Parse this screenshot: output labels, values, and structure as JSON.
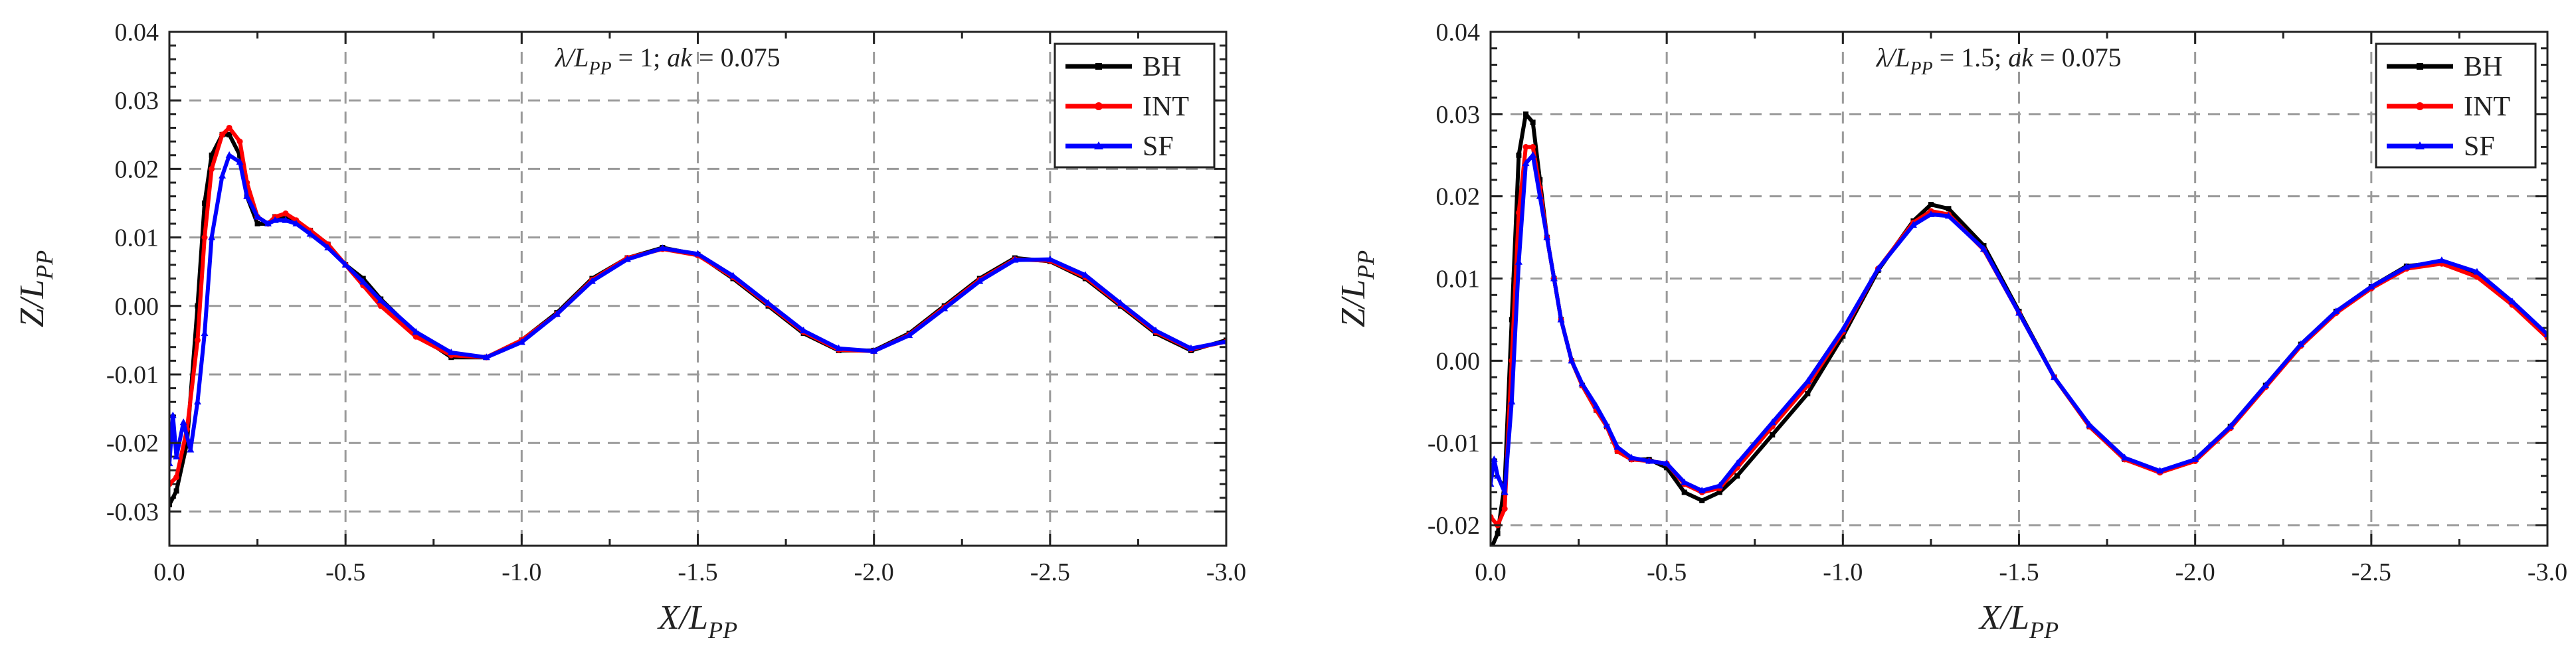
{
  "chart_data": [
    {
      "type": "line",
      "title": "",
      "annotation": {
        "prefix": "λ/L",
        "prefix_sub": "PP",
        "mid": " = 1; ",
        "ak": "ak",
        "suffix": " = 0.075"
      },
      "xlabel": {
        "main": "X/L",
        "sub": "PP"
      },
      "ylabel": {
        "main": "Z/L",
        "sub": "PP"
      },
      "xlim": [
        0.0,
        -3.0
      ],
      "ylim": [
        -0.035,
        0.04
      ],
      "xticks": [
        0.0,
        -0.5,
        -1.0,
        -1.5,
        -2.0,
        -2.5,
        -3.0
      ],
      "xtick_labels": [
        "0.0",
        "-0.5",
        "-1.0",
        "-1.5",
        "-2.0",
        "-2.5",
        "-3.0"
      ],
      "yticks": [
        -0.03,
        -0.02,
        -0.01,
        0.0,
        0.01,
        0.02,
        0.03,
        0.04
      ],
      "ytick_labels": [
        "-0.03",
        "-0.02",
        "-0.01",
        "0.00",
        "0.01",
        "0.02",
        "0.03",
        "0.04"
      ],
      "grid": true,
      "legend_position": "top-right",
      "series": [
        {
          "name": "BH",
          "color": "#000000",
          "marker": "square",
          "x": [
            0.0,
            -0.02,
            -0.05,
            -0.08,
            -0.1,
            -0.12,
            -0.15,
            -0.17,
            -0.2,
            -0.22,
            -0.25,
            -0.28,
            -0.3,
            -0.33,
            -0.36,
            -0.4,
            -0.45,
            -0.5,
            -0.55,
            -0.6,
            -0.7,
            -0.8,
            -0.9,
            -1.0,
            -1.1,
            -1.2,
            -1.3,
            -1.4,
            -1.5,
            -1.6,
            -1.7,
            -1.8,
            -1.9,
            -2.0,
            -2.1,
            -2.2,
            -2.3,
            -2.4,
            -2.5,
            -2.6,
            -2.7,
            -2.8,
            -2.9,
            -3.0
          ],
          "y": [
            -0.029,
            -0.027,
            -0.02,
            0.0,
            0.015,
            0.022,
            0.025,
            0.025,
            0.022,
            0.016,
            0.012,
            0.012,
            0.013,
            0.013,
            0.012,
            0.011,
            0.009,
            0.006,
            0.004,
            0.001,
            -0.004,
            -0.0075,
            -0.0075,
            -0.005,
            -0.001,
            0.004,
            0.007,
            0.0085,
            0.0075,
            0.004,
            0.0,
            -0.004,
            -0.0065,
            -0.0065,
            -0.004,
            0.0,
            0.004,
            0.007,
            0.0065,
            0.004,
            0.0,
            -0.004,
            -0.0065,
            -0.005
          ]
        },
        {
          "name": "INT",
          "color": "#ff0000",
          "marker": "circle",
          "x": [
            0.0,
            -0.02,
            -0.05,
            -0.08,
            -0.1,
            -0.12,
            -0.15,
            -0.17,
            -0.2,
            -0.22,
            -0.25,
            -0.28,
            -0.3,
            -0.33,
            -0.36,
            -0.4,
            -0.45,
            -0.5,
            -0.55,
            -0.6,
            -0.7,
            -0.8,
            -0.9,
            -1.0,
            -1.1,
            -1.2,
            -1.3,
            -1.4,
            -1.5,
            -1.6,
            -1.7,
            -1.8,
            -1.9,
            -2.0,
            -2.1,
            -2.2,
            -2.3,
            -2.4,
            -2.5,
            -2.6,
            -2.7,
            -2.8,
            -2.9,
            -3.0
          ],
          "y": [
            -0.026,
            -0.025,
            -0.018,
            -0.005,
            0.01,
            0.02,
            0.025,
            0.026,
            0.024,
            0.018,
            0.013,
            0.012,
            0.013,
            0.0135,
            0.0125,
            0.011,
            0.009,
            0.006,
            0.003,
            0.0,
            -0.0045,
            -0.0072,
            -0.0075,
            -0.005,
            -0.0012,
            0.0038,
            0.007,
            0.0083,
            0.0074,
            0.0042,
            0.0002,
            -0.0038,
            -0.0064,
            -0.0066,
            -0.0042,
            -0.0002,
            0.0038,
            0.0068,
            0.0066,
            0.0042,
            0.0002,
            -0.0038,
            -0.0063,
            -0.0052
          ]
        },
        {
          "name": "SF",
          "color": "#0000ff",
          "marker": "triangle",
          "x": [
            0.0,
            -0.01,
            -0.02,
            -0.04,
            -0.06,
            -0.08,
            -0.1,
            -0.12,
            -0.15,
            -0.17,
            -0.2,
            -0.22,
            -0.25,
            -0.28,
            -0.3,
            -0.33,
            -0.36,
            -0.4,
            -0.45,
            -0.5,
            -0.55,
            -0.6,
            -0.7,
            -0.8,
            -0.9,
            -1.0,
            -1.1,
            -1.2,
            -1.3,
            -1.4,
            -1.5,
            -1.6,
            -1.7,
            -1.8,
            -1.9,
            -2.0,
            -2.1,
            -2.2,
            -2.3,
            -2.4,
            -2.5,
            -2.6,
            -2.7,
            -2.8,
            -2.9,
            -3.0
          ],
          "y": [
            -0.023,
            -0.016,
            -0.022,
            -0.017,
            -0.021,
            -0.014,
            -0.004,
            0.01,
            0.019,
            0.022,
            0.021,
            0.016,
            0.013,
            0.012,
            0.0125,
            0.0125,
            0.012,
            0.0105,
            0.0085,
            0.006,
            0.0035,
            0.0008,
            -0.0038,
            -0.0068,
            -0.0075,
            -0.0053,
            -0.0012,
            0.0036,
            0.0068,
            0.0084,
            0.0076,
            0.0044,
            0.0004,
            -0.0036,
            -0.0062,
            -0.0066,
            -0.0043,
            -0.0004,
            0.0036,
            0.0067,
            0.0068,
            0.0045,
            0.0004,
            -0.0036,
            -0.0062,
            -0.0052
          ]
        }
      ]
    },
    {
      "type": "line",
      "title": "",
      "annotation": {
        "prefix": "λ/L",
        "prefix_sub": "PP",
        "mid": " = 1.5; ",
        "ak": "ak",
        "suffix": " = 0.075"
      },
      "xlabel": {
        "main": "X/L",
        "sub": "PP"
      },
      "ylabel": {
        "main": "Z/L",
        "sub": "PP"
      },
      "xlim": [
        0.0,
        -3.0
      ],
      "ylim": [
        -0.0225,
        0.04
      ],
      "xticks": [
        0.0,
        -0.5,
        -1.0,
        -1.5,
        -2.0,
        -2.5,
        -3.0
      ],
      "xtick_labels": [
        "0.0",
        "-0.5",
        "-1.0",
        "-1.5",
        "-2.0",
        "-2.5",
        "-3.0"
      ],
      "yticks": [
        -0.02,
        -0.01,
        0.0,
        0.01,
        0.02,
        0.03,
        0.04
      ],
      "ytick_labels": [
        "-0.02",
        "-0.01",
        "0.00",
        "0.01",
        "0.02",
        "0.03",
        "0.04"
      ],
      "grid": true,
      "legend_position": "top-right",
      "series": [
        {
          "name": "BH",
          "color": "#000000",
          "marker": "square",
          "x": [
            0.0,
            -0.02,
            -0.04,
            -0.06,
            -0.08,
            -0.1,
            -0.12,
            -0.14,
            -0.16,
            -0.18,
            -0.2,
            -0.23,
            -0.26,
            -0.3,
            -0.33,
            -0.36,
            -0.4,
            -0.45,
            -0.5,
            -0.55,
            -0.6,
            -0.65,
            -0.7,
            -0.8,
            -0.9,
            -1.0,
            -1.1,
            -1.2,
            -1.25,
            -1.3,
            -1.4,
            -1.5,
            -1.6,
            -1.7,
            -1.8,
            -1.9,
            -2.0,
            -2.1,
            -2.2,
            -2.3,
            -2.4,
            -2.5,
            -2.6,
            -2.7,
            -2.8,
            -2.9,
            -3.0
          ],
          "y": [
            -0.023,
            -0.021,
            -0.015,
            0.005,
            0.025,
            0.03,
            0.029,
            0.022,
            0.015,
            0.01,
            0.005,
            0.0,
            -0.003,
            -0.006,
            -0.008,
            -0.011,
            -0.012,
            -0.012,
            -0.013,
            -0.016,
            -0.017,
            -0.016,
            -0.014,
            -0.009,
            -0.004,
            0.003,
            0.011,
            0.017,
            0.019,
            0.0185,
            0.014,
            0.006,
            -0.002,
            -0.008,
            -0.012,
            -0.0135,
            -0.012,
            -0.008,
            -0.003,
            0.002,
            0.006,
            0.009,
            0.0115,
            0.012,
            0.0105,
            0.007,
            0.003
          ]
        },
        {
          "name": "INT",
          "color": "#ff0000",
          "marker": "circle",
          "x": [
            0.0,
            -0.02,
            -0.04,
            -0.06,
            -0.08,
            -0.1,
            -0.12,
            -0.14,
            -0.16,
            -0.18,
            -0.2,
            -0.23,
            -0.26,
            -0.3,
            -0.33,
            -0.36,
            -0.4,
            -0.45,
            -0.5,
            -0.55,
            -0.6,
            -0.65,
            -0.7,
            -0.8,
            -0.9,
            -1.0,
            -1.1,
            -1.2,
            -1.25,
            -1.3,
            -1.4,
            -1.5,
            -1.6,
            -1.7,
            -1.8,
            -1.9,
            -2.0,
            -2.1,
            -2.2,
            -2.3,
            -2.4,
            -2.5,
            -2.6,
            -2.7,
            -2.8,
            -2.9,
            -3.0
          ],
          "y": [
            -0.019,
            -0.02,
            -0.018,
            0.0,
            0.018,
            0.026,
            0.026,
            0.021,
            0.015,
            0.01,
            0.005,
            0.0,
            -0.003,
            -0.006,
            -0.008,
            -0.011,
            -0.012,
            -0.0122,
            -0.0125,
            -0.015,
            -0.016,
            -0.0155,
            -0.013,
            -0.008,
            -0.003,
            0.0035,
            0.0112,
            0.0168,
            0.0182,
            0.0178,
            0.0135,
            0.0058,
            -0.002,
            -0.008,
            -0.012,
            -0.0136,
            -0.0122,
            -0.0082,
            -0.0032,
            0.0018,
            0.0058,
            0.0088,
            0.0112,
            0.0118,
            0.0102,
            0.0068,
            0.0028
          ]
        },
        {
          "name": "SF",
          "color": "#0000ff",
          "marker": "triangle",
          "x": [
            0.0,
            -0.01,
            -0.02,
            -0.04,
            -0.06,
            -0.08,
            -0.1,
            -0.12,
            -0.14,
            -0.16,
            -0.18,
            -0.2,
            -0.23,
            -0.26,
            -0.3,
            -0.33,
            -0.36,
            -0.4,
            -0.45,
            -0.5,
            -0.55,
            -0.6,
            -0.65,
            -0.7,
            -0.8,
            -0.9,
            -1.0,
            -1.1,
            -1.2,
            -1.25,
            -1.3,
            -1.4,
            -1.5,
            -1.6,
            -1.7,
            -1.8,
            -1.9,
            -2.0,
            -2.1,
            -2.2,
            -2.3,
            -2.4,
            -2.5,
            -2.6,
            -2.7,
            -2.8,
            -2.9,
            -3.0
          ],
          "y": [
            -0.015,
            -0.012,
            -0.014,
            -0.016,
            -0.005,
            0.012,
            0.024,
            0.025,
            0.02,
            0.015,
            0.01,
            0.005,
            0.0,
            -0.0028,
            -0.0055,
            -0.0078,
            -0.0105,
            -0.0118,
            -0.0122,
            -0.0125,
            -0.0148,
            -0.0158,
            -0.0152,
            -0.0125,
            -0.0075,
            -0.0025,
            0.0038,
            0.0112,
            0.0165,
            0.0178,
            0.0176,
            0.0136,
            0.0058,
            -0.002,
            -0.0078,
            -0.0118,
            -0.0134,
            -0.012,
            -0.008,
            -0.003,
            0.002,
            0.006,
            0.009,
            0.0114,
            0.0122,
            0.0108,
            0.0072,
            0.0032
          ]
        }
      ]
    }
  ]
}
